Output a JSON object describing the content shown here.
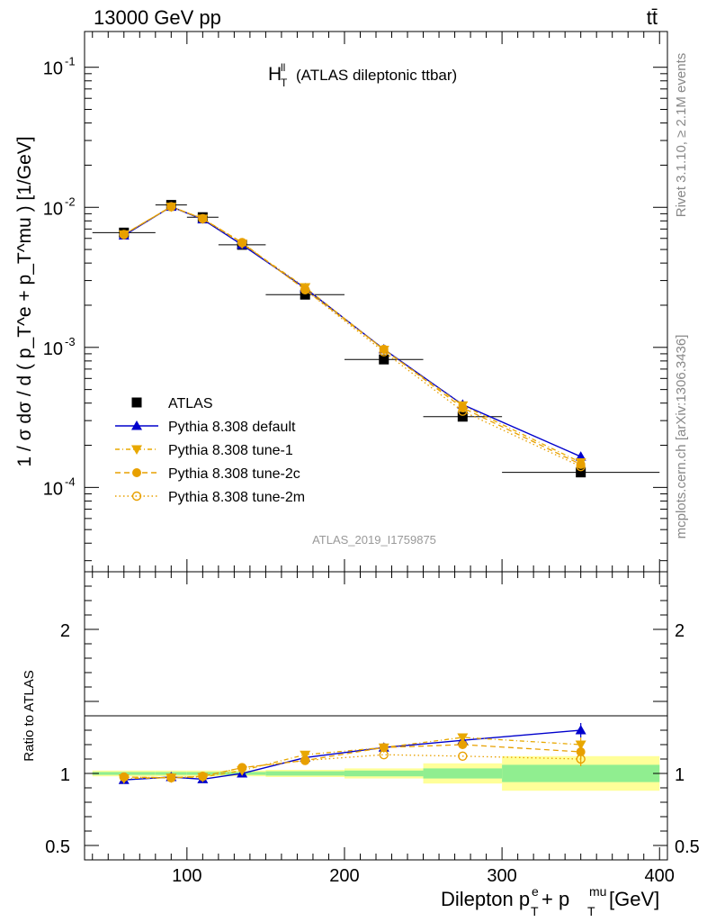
{
  "header": {
    "energy_label": "13000 GeV pp",
    "process_label": "tt̄"
  },
  "side_labels": {
    "rivet": "Rivet 3.1.10, ≥ 2.1M events",
    "mcplots": "mcplots.cern.ch [arXiv:1306.3436]"
  },
  "chart_data": [
    {
      "type": "line",
      "title": "H_T^ll (ATLAS dileptonic ttbar)",
      "title_main": "H",
      "title_sub": "T",
      "title_sup": "ll",
      "title_rest": "(ATLAS dileptonic ttbar)",
      "analysis_id": "ATLAS_2019_I1759875",
      "ylabel": "1 / σ  dσ / d ( p_T^e + p_T^mu ) [1/GeV]",
      "yscale": "log",
      "ylim": [
        2.5e-05,
        0.18
      ],
      "xlim": [
        35,
        405
      ],
      "y_tick_labels": [
        "10^-4",
        "10^-3",
        "10^-2",
        "10^-1"
      ],
      "x": [
        60,
        90,
        110,
        135,
        175,
        225,
        275,
        350
      ],
      "x_bin_edges": [
        40,
        80,
        100,
        120,
        150,
        200,
        250,
        300,
        400
      ],
      "legend_position": "center-left",
      "series": [
        {
          "name": "ATLAS",
          "color": "#000000",
          "marker": "square",
          "line": "none",
          "values": [
            0.0066,
            0.0104,
            0.0085,
            0.0054,
            0.00238,
            0.00082,
            0.00032,
            0.000128
          ]
        },
        {
          "name": "Pythia 8.308 default",
          "color": "#0000cc",
          "marker": "triangle-up",
          "line": "solid",
          "values": [
            0.0063,
            0.0101,
            0.0082,
            0.0054,
            0.00265,
            0.00097,
            0.00039,
            0.000166
          ]
        },
        {
          "name": "Pythia 8.308 tune-1",
          "color": "#e8a800",
          "marker": "triangle-down",
          "line": "dashdot",
          "values": [
            0.0064,
            0.0101,
            0.0083,
            0.0055,
            0.00269,
            0.00096,
            0.000385,
            0.000151
          ]
        },
        {
          "name": "Pythia 8.308 tune-2c",
          "color": "#e8a000",
          "marker": "circle",
          "line": "dashed",
          "values": [
            0.0064,
            0.0101,
            0.0083,
            0.0056,
            0.00258,
            0.00097,
            0.00037,
            0.000146
          ]
        },
        {
          "name": "Pythia 8.308 tune-2m",
          "color": "#e8a000",
          "marker": "circle-open",
          "line": "dotted",
          "values": [
            0.0064,
            0.0101,
            0.0083,
            0.0056,
            0.00258,
            0.00093,
            0.00035,
            0.000141
          ]
        }
      ]
    },
    {
      "type": "line",
      "ylabel": "Ratio to ATLAS",
      "xlabel": "Dilepton p_T^e + p_T^mu [GeV]",
      "xlabel_main": "Dilepton p",
      "xlabel_sub1": "T",
      "xlabel_sup1": "e",
      "xlabel_mid": " + p",
      "xlabel_sub2": "T",
      "xlabel_sup2": "mu",
      "xlabel_end": " [GeV]",
      "ylim": [
        0.4,
        2.4
      ],
      "xlim": [
        35,
        405
      ],
      "y_ticks": [
        0.5,
        1,
        2
      ],
      "y_tick_labels": [
        "0.5",
        "1",
        "2"
      ],
      "x_ticks": [
        100,
        200,
        300,
        400
      ],
      "x_tick_labels": [
        "100",
        "200",
        "300",
        "400"
      ],
      "x": [
        60,
        90,
        110,
        135,
        175,
        225,
        275,
        350
      ],
      "bands": {
        "edges": [
          40,
          80,
          100,
          120,
          150,
          200,
          250,
          300,
          400
        ],
        "inner_halfwidth": [
          0.01,
          0.01,
          0.01,
          0.01,
          0.015,
          0.02,
          0.035,
          0.06
        ],
        "outer_halfwidth": [
          0.02,
          0.02,
          0.02,
          0.02,
          0.025,
          0.035,
          0.07,
          0.12
        ],
        "inner_color": "#90ee90",
        "outer_color": "#ffff99"
      },
      "series": [
        {
          "name": "Pythia 8.308 default",
          "color": "#0000cc",
          "marker": "triangle-up",
          "line": "solid",
          "values": [
            0.955,
            0.975,
            0.96,
            1.0,
            1.11,
            1.18,
            1.23,
            1.3
          ]
        },
        {
          "name": "Pythia 8.308 tune-1",
          "color": "#e8a800",
          "marker": "triangle-down",
          "line": "dashdot",
          "values": [
            0.965,
            0.97,
            0.975,
            1.02,
            1.13,
            1.18,
            1.25,
            1.2
          ]
        },
        {
          "name": "Pythia 8.308 tune-2c",
          "color": "#e8a000",
          "marker": "circle",
          "line": "dashed",
          "values": [
            0.975,
            0.97,
            0.98,
            1.04,
            1.09,
            1.18,
            1.2,
            1.15
          ]
        },
        {
          "name": "Pythia 8.308 tune-2m",
          "color": "#e8a000",
          "marker": "circle-open",
          "line": "dotted",
          "values": [
            0.975,
            0.97,
            0.98,
            1.04,
            1.09,
            1.13,
            1.12,
            1.1
          ]
        }
      ]
    }
  ]
}
